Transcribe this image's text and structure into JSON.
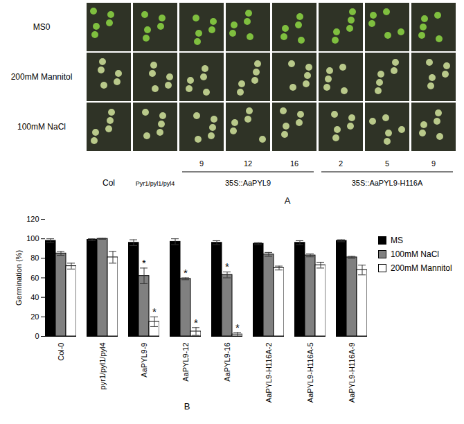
{
  "panel_a": {
    "label": "A",
    "row_labels": [
      "MS0",
      "200mM Mannitol",
      "100mM NaCl"
    ],
    "line_numbers": [
      null,
      null,
      9,
      12,
      16,
      2,
      5,
      9
    ],
    "genotype_groups": [
      {
        "label": "Col",
        "span": 1
      },
      {
        "label": "Pyr1/pyl1/pyl4",
        "span": 1
      },
      {
        "label": "35S::AaPYL9",
        "span": 3
      },
      {
        "label": "35S::AaPYL9-H116A",
        "span": 3
      }
    ]
  },
  "chart_data": {
    "type": "bar",
    "label": "B",
    "ylabel": "Germination (%)",
    "categories": [
      "Col-0",
      "pyr1/pyl1/pyl4",
      "AaPYL9-9",
      "AaPYL9-12",
      "AaPYL9-16",
      "AaPYL9-H116A-2",
      "AaPYL9-H116A-5",
      "AaPYL9-H116A-9"
    ],
    "series": [
      {
        "name": "MS",
        "color": "#000000",
        "values": [
          98,
          99,
          96,
          97,
          96,
          95,
          96,
          98
        ],
        "errors": [
          2,
          1,
          3,
          3,
          2,
          1,
          2,
          1
        ],
        "annotations": [
          null,
          null,
          null,
          null,
          null,
          null,
          null,
          null
        ]
      },
      {
        "name": "100mM NaCl",
        "color": "#808080",
        "values": [
          85,
          100,
          62,
          59,
          63,
          84,
          83,
          81
        ],
        "errors": [
          2,
          0.5,
          8,
          1,
          3,
          2,
          1.5,
          1
        ],
        "annotations": [
          null,
          null,
          "*",
          "*",
          "*",
          null,
          null,
          null
        ]
      },
      {
        "name": "200mM Mannitol",
        "color": "#ffffff",
        "values": [
          72,
          81,
          15,
          5,
          2,
          70,
          73,
          68
        ],
        "errors": [
          3,
          6,
          5,
          4,
          2,
          2,
          3,
          5
        ],
        "annotations": [
          null,
          null,
          "*",
          "*",
          "*",
          null,
          null,
          null
        ]
      }
    ],
    "ylim": [
      0,
      120
    ],
    "yticks": [
      0,
      20,
      40,
      60,
      80,
      100,
      120
    ],
    "grid": false,
    "legend": "right"
  }
}
